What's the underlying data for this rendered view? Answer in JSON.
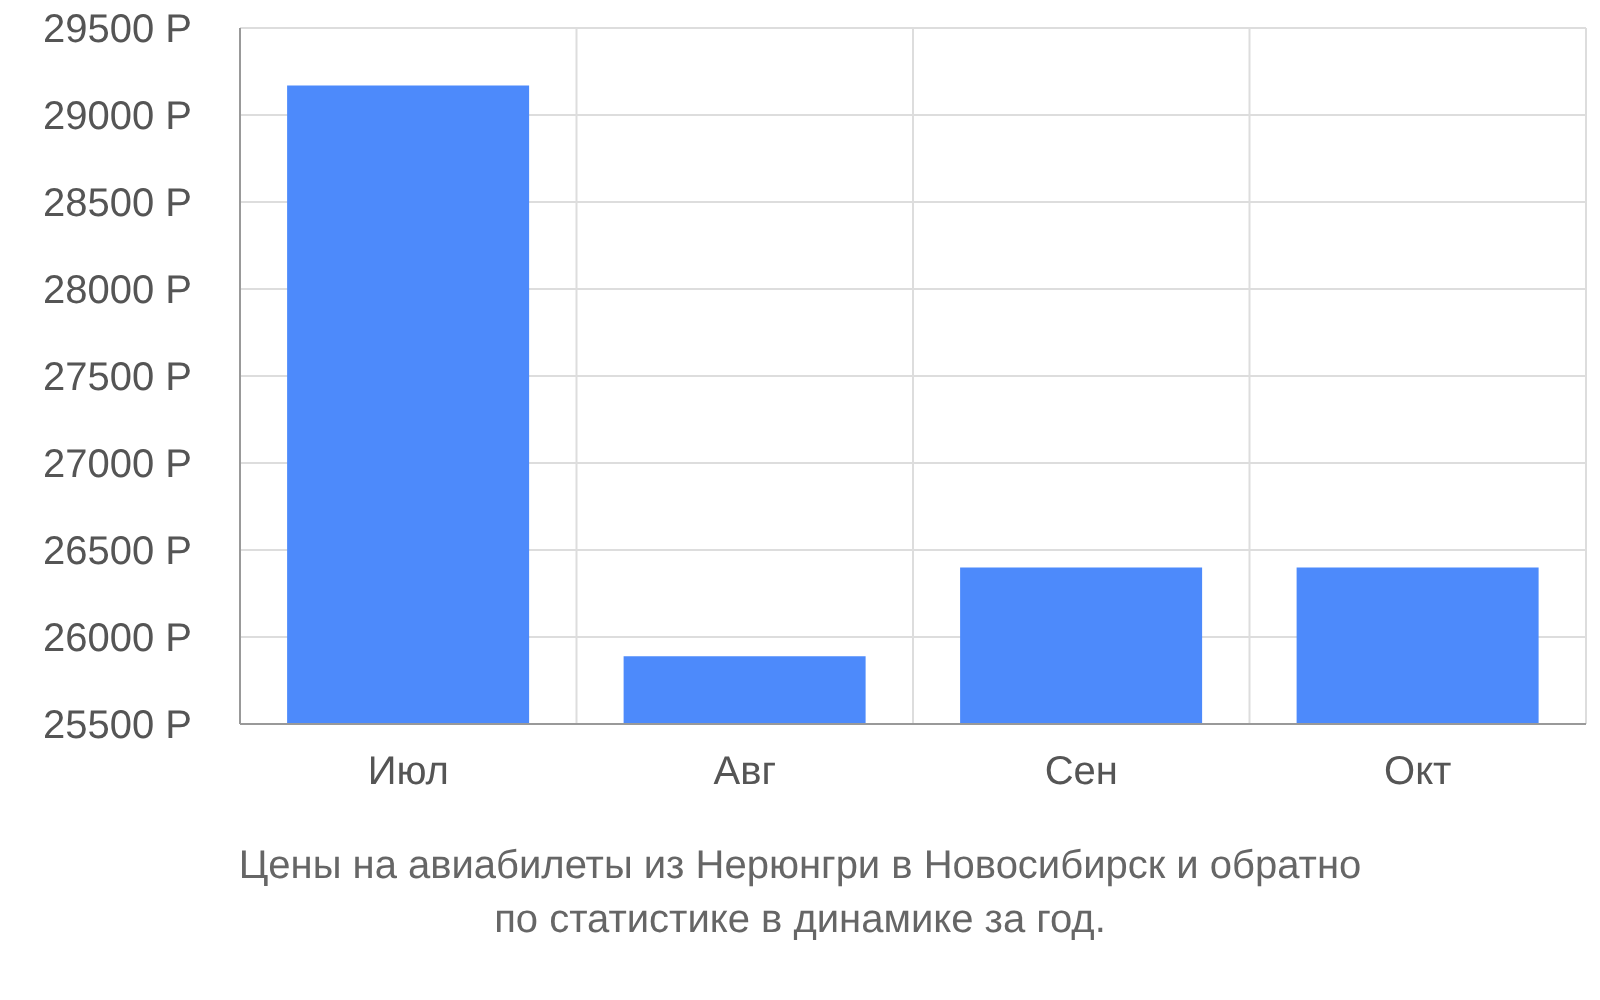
{
  "chart_data": {
    "type": "bar",
    "categories": [
      "Июл",
      "Авг",
      "Сен",
      "Окт"
    ],
    "values": [
      29170,
      25890,
      26400,
      26400
    ],
    "color": "#4d8afb",
    "ylim": [
      25500,
      29500
    ],
    "yticks": [
      {
        "value": 25500,
        "label": "25500 Р"
      },
      {
        "value": 26000,
        "label": "26000 Р"
      },
      {
        "value": 26500,
        "label": "26500 Р"
      },
      {
        "value": 27000,
        "label": "27000 Р"
      },
      {
        "value": 27500,
        "label": "27500 Р"
      },
      {
        "value": 28000,
        "label": "28000 Р"
      },
      {
        "value": 28500,
        "label": "28500 Р"
      },
      {
        "value": 29000,
        "label": "29000 Р"
      },
      {
        "value": 29500,
        "label": "29500 Р"
      }
    ],
    "grid": true,
    "annotations": [
      "Цены на авиабилеты из Нерюнгри в Новосибирск и обратно",
      "по статистике в динамике за год."
    ]
  }
}
